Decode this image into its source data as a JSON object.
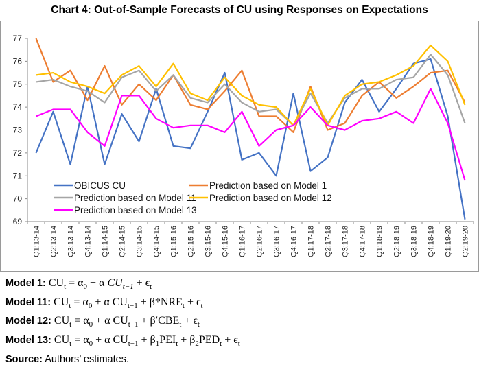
{
  "chart_data": {
    "type": "line",
    "title": "Chart 4: Out-of-Sample Forecasts of CU using Responses on Expectations",
    "xlabel": "",
    "ylabel": "",
    "ylim": [
      69,
      77
    ],
    "yticks": [
      "69",
      "70",
      "71",
      "72",
      "73",
      "74",
      "75",
      "76",
      "77"
    ],
    "grid": false,
    "legend": "bottom-left inside",
    "categories": [
      "Q1:13-14",
      "Q2:13-14",
      "Q3:13-14",
      "Q4:13-14",
      "Q1:14-15",
      "Q2:14-15",
      "Q3:14-15",
      "Q4:14-15",
      "Q1:15-16",
      "Q2:15-16",
      "Q3:15-16",
      "Q4:15-16",
      "Q1:16-17",
      "Q2:16-17",
      "Q3:16-17",
      "Q4:16-17",
      "Q1:17-18",
      "Q2:17-18",
      "Q3:17-18",
      "Q4:17-18",
      "Q1:18-19",
      "Q2:18-19",
      "Q3:18-19",
      "Q4:18-19",
      "Q1:19-20",
      "Q2:19-20"
    ],
    "series": [
      {
        "name": "OBICUS CU",
        "color": "#4472C4",
        "values": [
          72.0,
          73.8,
          71.5,
          74.9,
          71.5,
          73.7,
          72.5,
          74.8,
          72.3,
          72.2,
          73.8,
          75.5,
          71.7,
          72.0,
          71.0,
          74.6,
          71.2,
          71.8,
          74.2,
          75.2,
          73.8,
          74.8,
          75.9,
          76.1,
          73.6,
          69.1
        ]
      },
      {
        "name": "Prediction based on Model 1",
        "color": "#ED7D31",
        "values": [
          77.0,
          75.1,
          75.6,
          74.3,
          75.8,
          74.1,
          75.0,
          74.3,
          75.4,
          74.1,
          73.9,
          74.7,
          75.6,
          73.6,
          73.6,
          72.9,
          74.9,
          73.0,
          73.3,
          74.5,
          75.1,
          74.4,
          74.9,
          75.5,
          75.6,
          74.2
        ]
      },
      {
        "name": "Prediction based on Model 11",
        "color": "#A5A5A5",
        "values": [
          75.1,
          75.2,
          74.9,
          74.7,
          74.2,
          75.3,
          75.6,
          74.7,
          75.4,
          74.4,
          74.2,
          75.0,
          74.2,
          73.8,
          73.9,
          73.2,
          74.6,
          73.3,
          74.4,
          74.8,
          74.8,
          75.2,
          75.3,
          76.3,
          75.4,
          73.3
        ]
      },
      {
        "name": "Prediction based on Model 12",
        "color": "#FFC000",
        "values": [
          75.4,
          75.5,
          75.1,
          74.9,
          74.6,
          75.4,
          75.8,
          74.9,
          75.9,
          74.6,
          74.3,
          75.3,
          74.5,
          74.1,
          74.0,
          73.2,
          74.8,
          73.2,
          74.5,
          75.0,
          75.1,
          75.4,
          75.8,
          76.7,
          76.0,
          74.1
        ]
      },
      {
        "name": "Prediction based on Model 13",
        "color": "#FF00FF",
        "values": [
          73.6,
          73.9,
          73.9,
          72.9,
          72.3,
          74.5,
          74.5,
          73.5,
          73.1,
          73.2,
          73.2,
          72.9,
          73.8,
          72.3,
          73.0,
          73.2,
          74.0,
          73.2,
          73.0,
          73.4,
          73.5,
          73.8,
          73.3,
          74.8,
          73.3,
          70.8
        ]
      }
    ]
  },
  "notes": {
    "models": [
      {
        "label": "Model 1:",
        "eq": [
          [
            "CU",
            ""
          ],
          [
            "t",
            "sub"
          ],
          [
            " = α",
            ""
          ],
          [
            "0",
            "sub"
          ],
          [
            " + α ",
            ""
          ],
          [
            "CU",
            "i"
          ],
          [
            "t−1",
            "subi"
          ],
          [
            " + ϵ",
            ""
          ],
          [
            "t",
            "sub"
          ]
        ]
      },
      {
        "label": "Model 11:",
        "eq": [
          [
            "CU",
            ""
          ],
          [
            "t",
            "sub"
          ],
          [
            " = α",
            ""
          ],
          [
            "0",
            "sub"
          ],
          [
            " + α CU",
            ""
          ],
          [
            "t−1",
            "sub"
          ],
          [
            " + β*NRE",
            ""
          ],
          [
            "t",
            "sub"
          ],
          [
            " + ϵ",
            ""
          ],
          [
            "t",
            "sub"
          ]
        ]
      },
      {
        "label": "Model 12:",
        "eq": [
          [
            "CU",
            ""
          ],
          [
            "t",
            "sub"
          ],
          [
            " = α",
            ""
          ],
          [
            "0",
            "sub"
          ],
          [
            " + α CU",
            ""
          ],
          [
            "t−1",
            "sub"
          ],
          [
            " + β′CBE",
            ""
          ],
          [
            "t",
            "sub"
          ],
          [
            " + ϵ",
            ""
          ],
          [
            "t",
            "sub"
          ]
        ]
      },
      {
        "label": "Model 13:",
        "eq": [
          [
            "CU",
            ""
          ],
          [
            "t",
            "sub"
          ],
          [
            " = α",
            ""
          ],
          [
            "0",
            "sub"
          ],
          [
            " + α CU",
            ""
          ],
          [
            "t−1",
            "sub"
          ],
          [
            " + β",
            ""
          ],
          [
            "1",
            "sub"
          ],
          [
            "PEI",
            ""
          ],
          [
            "t",
            "sub"
          ],
          [
            " + β",
            ""
          ],
          [
            "2",
            "sub"
          ],
          [
            "PED",
            ""
          ],
          [
            "t",
            "sub"
          ],
          [
            " + ϵ",
            ""
          ],
          [
            "t",
            "sub"
          ]
        ]
      }
    ],
    "source_label": "Source:",
    "source_text": " Authors’ estimates."
  }
}
